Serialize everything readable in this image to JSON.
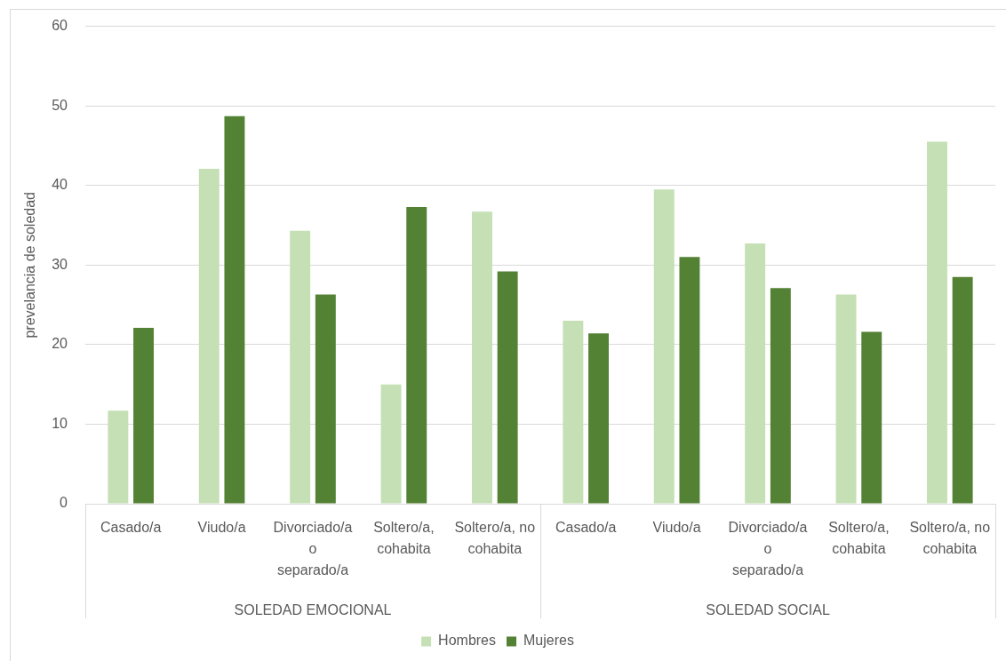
{
  "chart_data": {
    "type": "bar",
    "ylabel": "prevelancia de soledad",
    "categories": [
      "Casado/a",
      "Viudo/a",
      "Divorciado/a o separado/a",
      "Soltero/a, cohabita",
      "Soltero/a, no cohabita",
      "Casado/a",
      "Viudo/a",
      "Divorciado/a o separado/a",
      "Soltero/a, cohabita",
      "Soltero/a, no cohabita"
    ],
    "series": [
      {
        "name": "Hombres",
        "color": "#c5e0b4",
        "values": [
          11.7,
          42.1,
          34.3,
          15.0,
          36.7,
          23.0,
          39.5,
          32.7,
          26.3,
          45.5
        ]
      },
      {
        "name": "Mujeres",
        "color": "#548235",
        "values": [
          22.1,
          48.7,
          26.3,
          37.3,
          29.2,
          21.4,
          31.0,
          27.1,
          21.6,
          28.5
        ]
      }
    ],
    "ylim": [
      0,
      60
    ],
    "yticks": [
      0,
      10,
      20,
      30,
      40,
      50,
      60
    ],
    "grid": "y",
    "legend": "bottom",
    "annotations": [
      "SOLEDAD EMOCIONAL",
      "SOLEDAD SOCIAL"
    ]
  }
}
